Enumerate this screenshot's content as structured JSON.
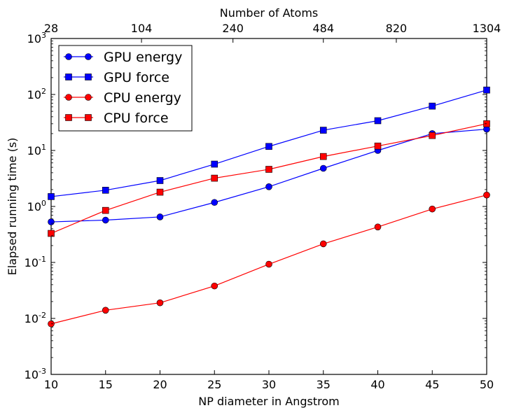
{
  "chart_data": {
    "type": "line",
    "xlabel": "NP diameter in Angstrom",
    "ylabel": "Elapsed running time (s)",
    "top_xlabel": "Number of Atoms",
    "xlim": [
      10,
      50
    ],
    "ylim": [
      0.001,
      1000
    ],
    "yscale": "log",
    "xticks": [
      10,
      15,
      20,
      25,
      30,
      35,
      40,
      45,
      50
    ],
    "yticks": [
      {
        "value": 0.001,
        "base": "10",
        "exp": "-3"
      },
      {
        "value": 0.01,
        "base": "10",
        "exp": "-2"
      },
      {
        "value": 0.1,
        "base": "10",
        "exp": "-1"
      },
      {
        "value": 1,
        "base": "10",
        "exp": "0"
      },
      {
        "value": 10,
        "base": "10",
        "exp": "1"
      },
      {
        "value": 100,
        "base": "10",
        "exp": "2"
      },
      {
        "value": 1000,
        "base": "10",
        "exp": "3"
      }
    ],
    "top_xticks": [
      {
        "x": 10,
        "label": "28"
      },
      {
        "x": 18.3,
        "label": "104"
      },
      {
        "x": 26.7,
        "label": "240"
      },
      {
        "x": 35,
        "label": "484"
      },
      {
        "x": 41.7,
        "label": "820"
      },
      {
        "x": 50,
        "label": "1304"
      }
    ],
    "legend_position": "top-left",
    "grid": false,
    "x": [
      10,
      15,
      20,
      25,
      30,
      35,
      40,
      45,
      50
    ],
    "series": [
      {
        "name": "GPU energy",
        "color": "#0000ff",
        "marker": "circle",
        "values": [
          0.53,
          0.57,
          0.65,
          1.18,
          2.25,
          4.8,
          10.0,
          20.0,
          24.0
        ]
      },
      {
        "name": "GPU force",
        "color": "#0000ff",
        "marker": "square",
        "values": [
          1.5,
          1.95,
          2.9,
          5.7,
          11.8,
          23.0,
          34.0,
          62.0,
          120.0
        ]
      },
      {
        "name": "CPU energy",
        "color": "#ff0000",
        "marker": "circle",
        "values": [
          0.008,
          0.014,
          0.019,
          0.038,
          0.093,
          0.215,
          0.43,
          0.9,
          1.6
        ]
      },
      {
        "name": "CPU force",
        "color": "#ff0000",
        "marker": "square",
        "values": [
          0.33,
          0.85,
          1.8,
          3.2,
          4.6,
          7.8,
          12.0,
          18.5,
          30.0
        ]
      }
    ]
  }
}
